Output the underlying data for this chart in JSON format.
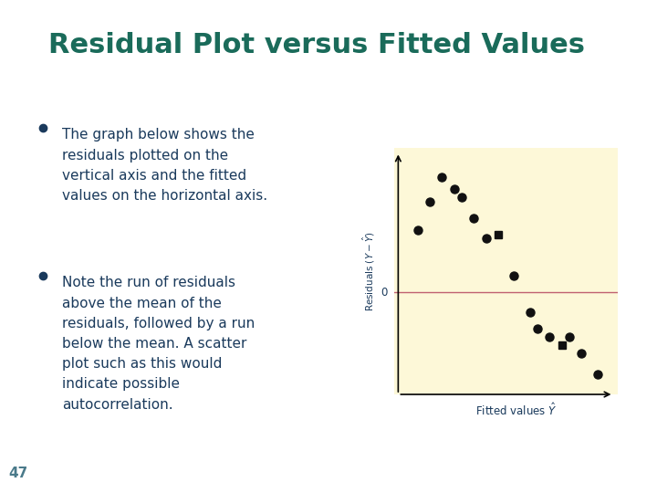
{
  "title": "Residual Plot versus Fitted Values",
  "title_color": "#1a6b5a",
  "title_fontsize": 22,
  "bg_color": "#ffffff",
  "left_bg_color": "#9dc49a",
  "header_bar_color": "#1a3050",
  "bullet_color": "#1a3a5c",
  "text_color": "#1a3a5c",
  "bullet1": "The graph below shows the\nresiduals plotted on the\nvertical axis and the fitted\nvalues on the horizontal axis.",
  "bullet2": "Note the run of residuals\nabove the mean of the\nresiduals, followed by a run\nbelow the mean. A scatter\nplot such as this would\nindicate possible\nautocorrelation.",
  "page_number": "47",
  "plot_bg_color": "#fdf8d8",
  "plot_xlabel": "Fitted values $\\hat{Y}$",
  "plot_ylabel": "Residuals $(Y - \\hat{Y})$",
  "zero_line_color": "#c06070",
  "scatter_color": "#111111",
  "scatter_x": [
    1.0,
    1.6,
    2.2,
    2.8,
    3.2,
    3.8,
    4.4,
    5.0,
    5.8,
    6.6,
    7.0,
    7.6,
    8.2,
    8.6,
    9.2,
    10.0
  ],
  "scatter_y": [
    1.5,
    2.2,
    2.8,
    2.5,
    2.3,
    1.8,
    1.3,
    1.4,
    0.4,
    -0.5,
    -0.9,
    -1.1,
    -1.3,
    -1.1,
    -1.5,
    -2.0
  ],
  "square_indices": [
    7,
    12
  ]
}
